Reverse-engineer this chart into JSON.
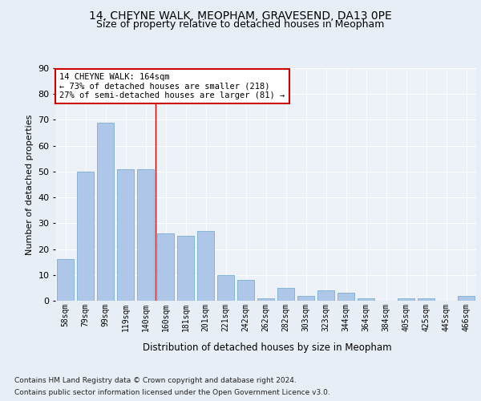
{
  "title1": "14, CHEYNE WALK, MEOPHAM, GRAVESEND, DA13 0PE",
  "title2": "Size of property relative to detached houses in Meopham",
  "xlabel": "Distribution of detached houses by size in Meopham",
  "ylabel": "Number of detached properties",
  "categories": [
    "58sqm",
    "79sqm",
    "99sqm",
    "119sqm",
    "140sqm",
    "160sqm",
    "181sqm",
    "201sqm",
    "221sqm",
    "242sqm",
    "262sqm",
    "282sqm",
    "303sqm",
    "323sqm",
    "344sqm",
    "364sqm",
    "384sqm",
    "405sqm",
    "425sqm",
    "445sqm",
    "466sqm"
  ],
  "values": [
    16,
    50,
    69,
    51,
    51,
    26,
    25,
    27,
    10,
    8,
    1,
    5,
    2,
    4,
    3,
    1,
    0,
    1,
    1,
    0,
    2
  ],
  "bar_color": "#aec6e8",
  "bar_edge_color": "#7aaed0",
  "vline_x_index": 4.5,
  "vline_color": "#cc0000",
  "annotation_line1": "14 CHEYNE WALK: 164sqm",
  "annotation_line2": "← 73% of detached houses are smaller (218)",
  "annotation_line3": "27% of semi-detached houses are larger (81) →",
  "annotation_box_color": "#ffffff",
  "annotation_box_edge_color": "#cc0000",
  "ylim": [
    0,
    90
  ],
  "yticks": [
    0,
    10,
    20,
    30,
    40,
    50,
    60,
    70,
    80,
    90
  ],
  "footer1": "Contains HM Land Registry data © Crown copyright and database right 2024.",
  "footer2": "Contains public sector information licensed under the Open Government Licence v3.0.",
  "bg_color": "#e8eef5",
  "plot_bg_color": "#edf2f8"
}
